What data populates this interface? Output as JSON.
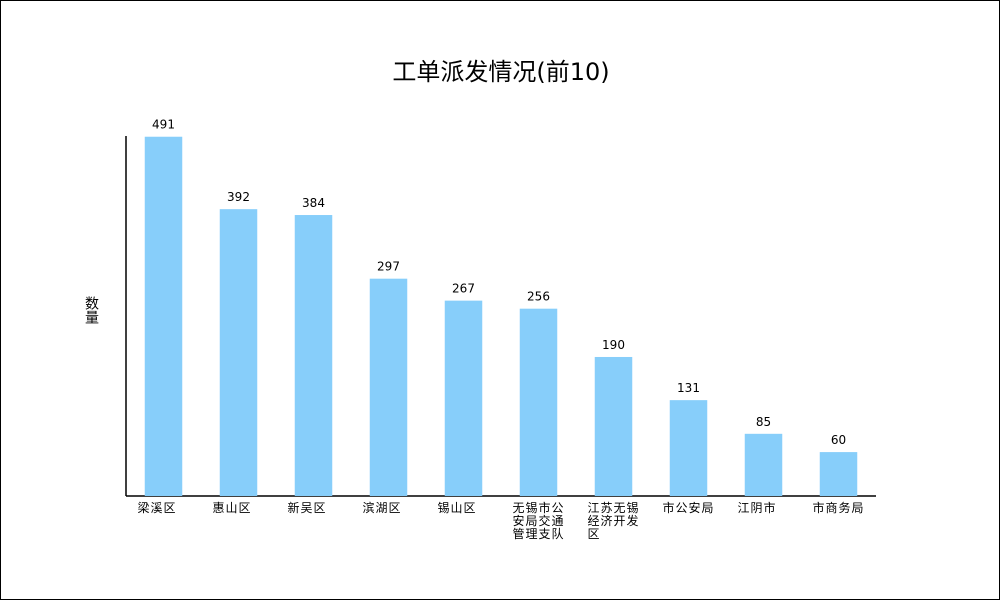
{
  "chart_data": {
    "type": "bar",
    "title": "工单派发情况(前10)",
    "y_label": "数量",
    "categories": [
      "梁溪区",
      "惠山区",
      "新吴区",
      "滨湖区",
      "锡山区",
      "无锡市公安局交通管理支队",
      "江苏无锡经济开发区",
      "市公安局",
      "江阴市",
      "市商务局"
    ],
    "values": [
      491,
      392,
      384,
      297,
      267,
      256,
      190,
      131,
      85,
      60
    ],
    "color": "#87cefa",
    "ylim": [
      0,
      492
    ]
  }
}
